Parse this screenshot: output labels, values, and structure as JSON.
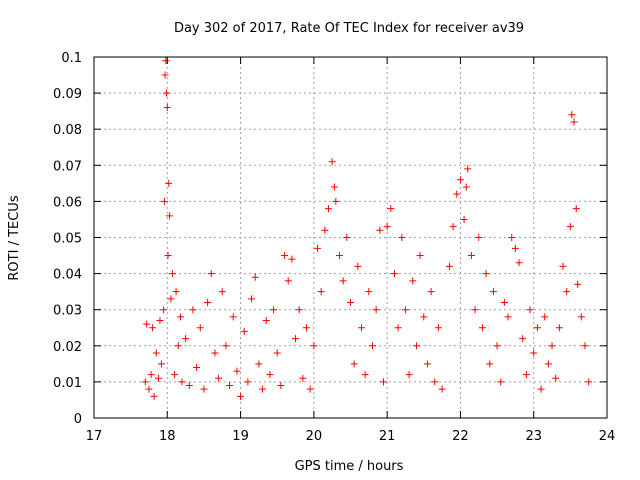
{
  "chart_data": {
    "type": "scatter",
    "title": "Day 302 of 2017, Rate Of TEC Index for receiver av39",
    "xlabel": "GPS time / hours",
    "ylabel": "ROTI / TECUs",
    "xlim": [
      17,
      24
    ],
    "ylim": [
      0,
      0.1
    ],
    "x_ticks": [
      "17",
      "18",
      "19",
      "20",
      "21",
      "22",
      "23",
      "24"
    ],
    "y_ticks": [
      "0",
      "0.01",
      "0.02",
      "0.03",
      "0.04",
      "0.05",
      "0.06",
      "0.07",
      "0.08",
      "0.09",
      "0.1"
    ],
    "grid": true,
    "marker": "+",
    "marker_color": "#ff0000",
    "series": [
      {
        "name": "ROTI",
        "x": [
          17.7,
          17.72,
          17.75,
          17.78,
          17.8,
          17.82,
          17.85,
          17.88,
          17.9,
          17.92,
          17.95,
          17.96,
          17.97,
          17.98,
          17.99,
          18.0,
          18.01,
          18.02,
          18.03,
          18.05,
          18.07,
          18.1,
          18.12,
          18.15,
          18.18,
          18.2,
          18.25,
          18.3,
          18.35,
          18.4,
          18.45,
          18.5,
          18.55,
          18.6,
          18.65,
          18.7,
          18.75,
          18.8,
          18.85,
          18.9,
          18.95,
          19.0,
          19.05,
          19.1,
          19.15,
          19.2,
          19.25,
          19.3,
          19.35,
          19.4,
          19.45,
          19.5,
          19.55,
          19.6,
          19.65,
          19.7,
          19.75,
          19.8,
          19.85,
          19.9,
          19.95,
          20.0,
          20.05,
          20.1,
          20.15,
          20.2,
          20.25,
          20.28,
          20.3,
          20.35,
          20.4,
          20.45,
          20.5,
          20.55,
          20.6,
          20.65,
          20.7,
          20.75,
          20.8,
          20.85,
          20.9,
          20.95,
          21.0,
          21.05,
          21.1,
          21.15,
          21.2,
          21.25,
          21.3,
          21.35,
          21.4,
          21.45,
          21.5,
          21.55,
          21.6,
          21.65,
          21.7,
          21.75,
          21.85,
          21.9,
          21.95,
          22.0,
          22.05,
          22.08,
          22.1,
          22.15,
          22.2,
          22.25,
          22.3,
          22.35,
          22.4,
          22.45,
          22.5,
          22.55,
          22.6,
          22.65,
          22.7,
          22.75,
          22.8,
          22.85,
          22.9,
          22.95,
          23.0,
          23.05,
          23.1,
          23.15,
          23.2,
          23.25,
          23.3,
          23.35,
          23.4,
          23.45,
          23.5,
          23.52,
          23.55,
          23.58,
          23.6,
          23.65,
          23.7,
          23.75
        ],
        "y": [
          0.01,
          0.026,
          0.008,
          0.012,
          0.025,
          0.006,
          0.018,
          0.011,
          0.027,
          0.015,
          0.03,
          0.06,
          0.095,
          0.099,
          0.09,
          0.086,
          0.045,
          0.065,
          0.056,
          0.033,
          0.04,
          0.012,
          0.035,
          0.02,
          0.028,
          0.01,
          0.022,
          0.009,
          0.03,
          0.014,
          0.025,
          0.008,
          0.032,
          0.04,
          0.018,
          0.011,
          0.035,
          0.02,
          0.009,
          0.028,
          0.013,
          0.006,
          0.024,
          0.01,
          0.033,
          0.039,
          0.015,
          0.008,
          0.027,
          0.012,
          0.03,
          0.018,
          0.009,
          0.045,
          0.038,
          0.044,
          0.022,
          0.03,
          0.011,
          0.025,
          0.008,
          0.02,
          0.047,
          0.035,
          0.052,
          0.058,
          0.071,
          0.064,
          0.06,
          0.045,
          0.038,
          0.05,
          0.032,
          0.015,
          0.042,
          0.025,
          0.012,
          0.035,
          0.02,
          0.03,
          0.052,
          0.01,
          0.053,
          0.058,
          0.04,
          0.025,
          0.05,
          0.03,
          0.012,
          0.038,
          0.02,
          0.045,
          0.028,
          0.015,
          0.035,
          0.01,
          0.025,
          0.008,
          0.042,
          0.053,
          0.062,
          0.066,
          0.055,
          0.064,
          0.069,
          0.045,
          0.03,
          0.05,
          0.025,
          0.04,
          0.015,
          0.035,
          0.02,
          0.01,
          0.032,
          0.028,
          0.05,
          0.047,
          0.043,
          0.022,
          0.012,
          0.03,
          0.018,
          0.025,
          0.008,
          0.028,
          0.015,
          0.02,
          0.011,
          0.025,
          0.042,
          0.035,
          0.053,
          0.084,
          0.082,
          0.058,
          0.037,
          0.028,
          0.02,
          0.01
        ]
      }
    ]
  }
}
